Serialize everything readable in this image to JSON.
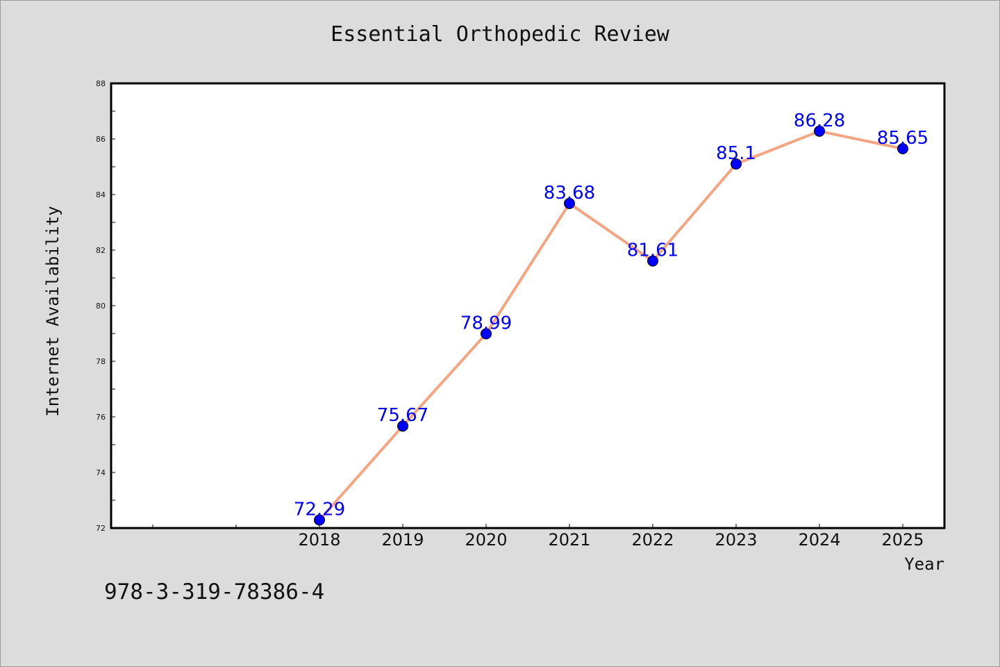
{
  "chart_data": {
    "type": "line",
    "title": "Essential Orthopedic Review",
    "xlabel": "Year",
    "ylabel": "Internet Availability",
    "categories": [
      "2018",
      "2019",
      "2020",
      "2021",
      "2022",
      "2023",
      "2024",
      "2025"
    ],
    "values": [
      72.29,
      75.67,
      78.99,
      83.68,
      81.61,
      85.1,
      86.28,
      85.65
    ],
    "data_labels": [
      "72.29",
      "75.67",
      "78.99",
      "83.68",
      "81.61",
      "85.1",
      "86.28",
      "85.65"
    ],
    "ylim": [
      72,
      88
    ],
    "yticks": [
      72,
      74,
      76,
      78,
      80,
      82,
      84,
      86,
      88
    ],
    "grid": false,
    "line_color": "#f4a582",
    "marker_color": "#0000ff",
    "label_color": "#0000ff"
  },
  "footer": {
    "isbn": "978-3-319-78386-4"
  }
}
